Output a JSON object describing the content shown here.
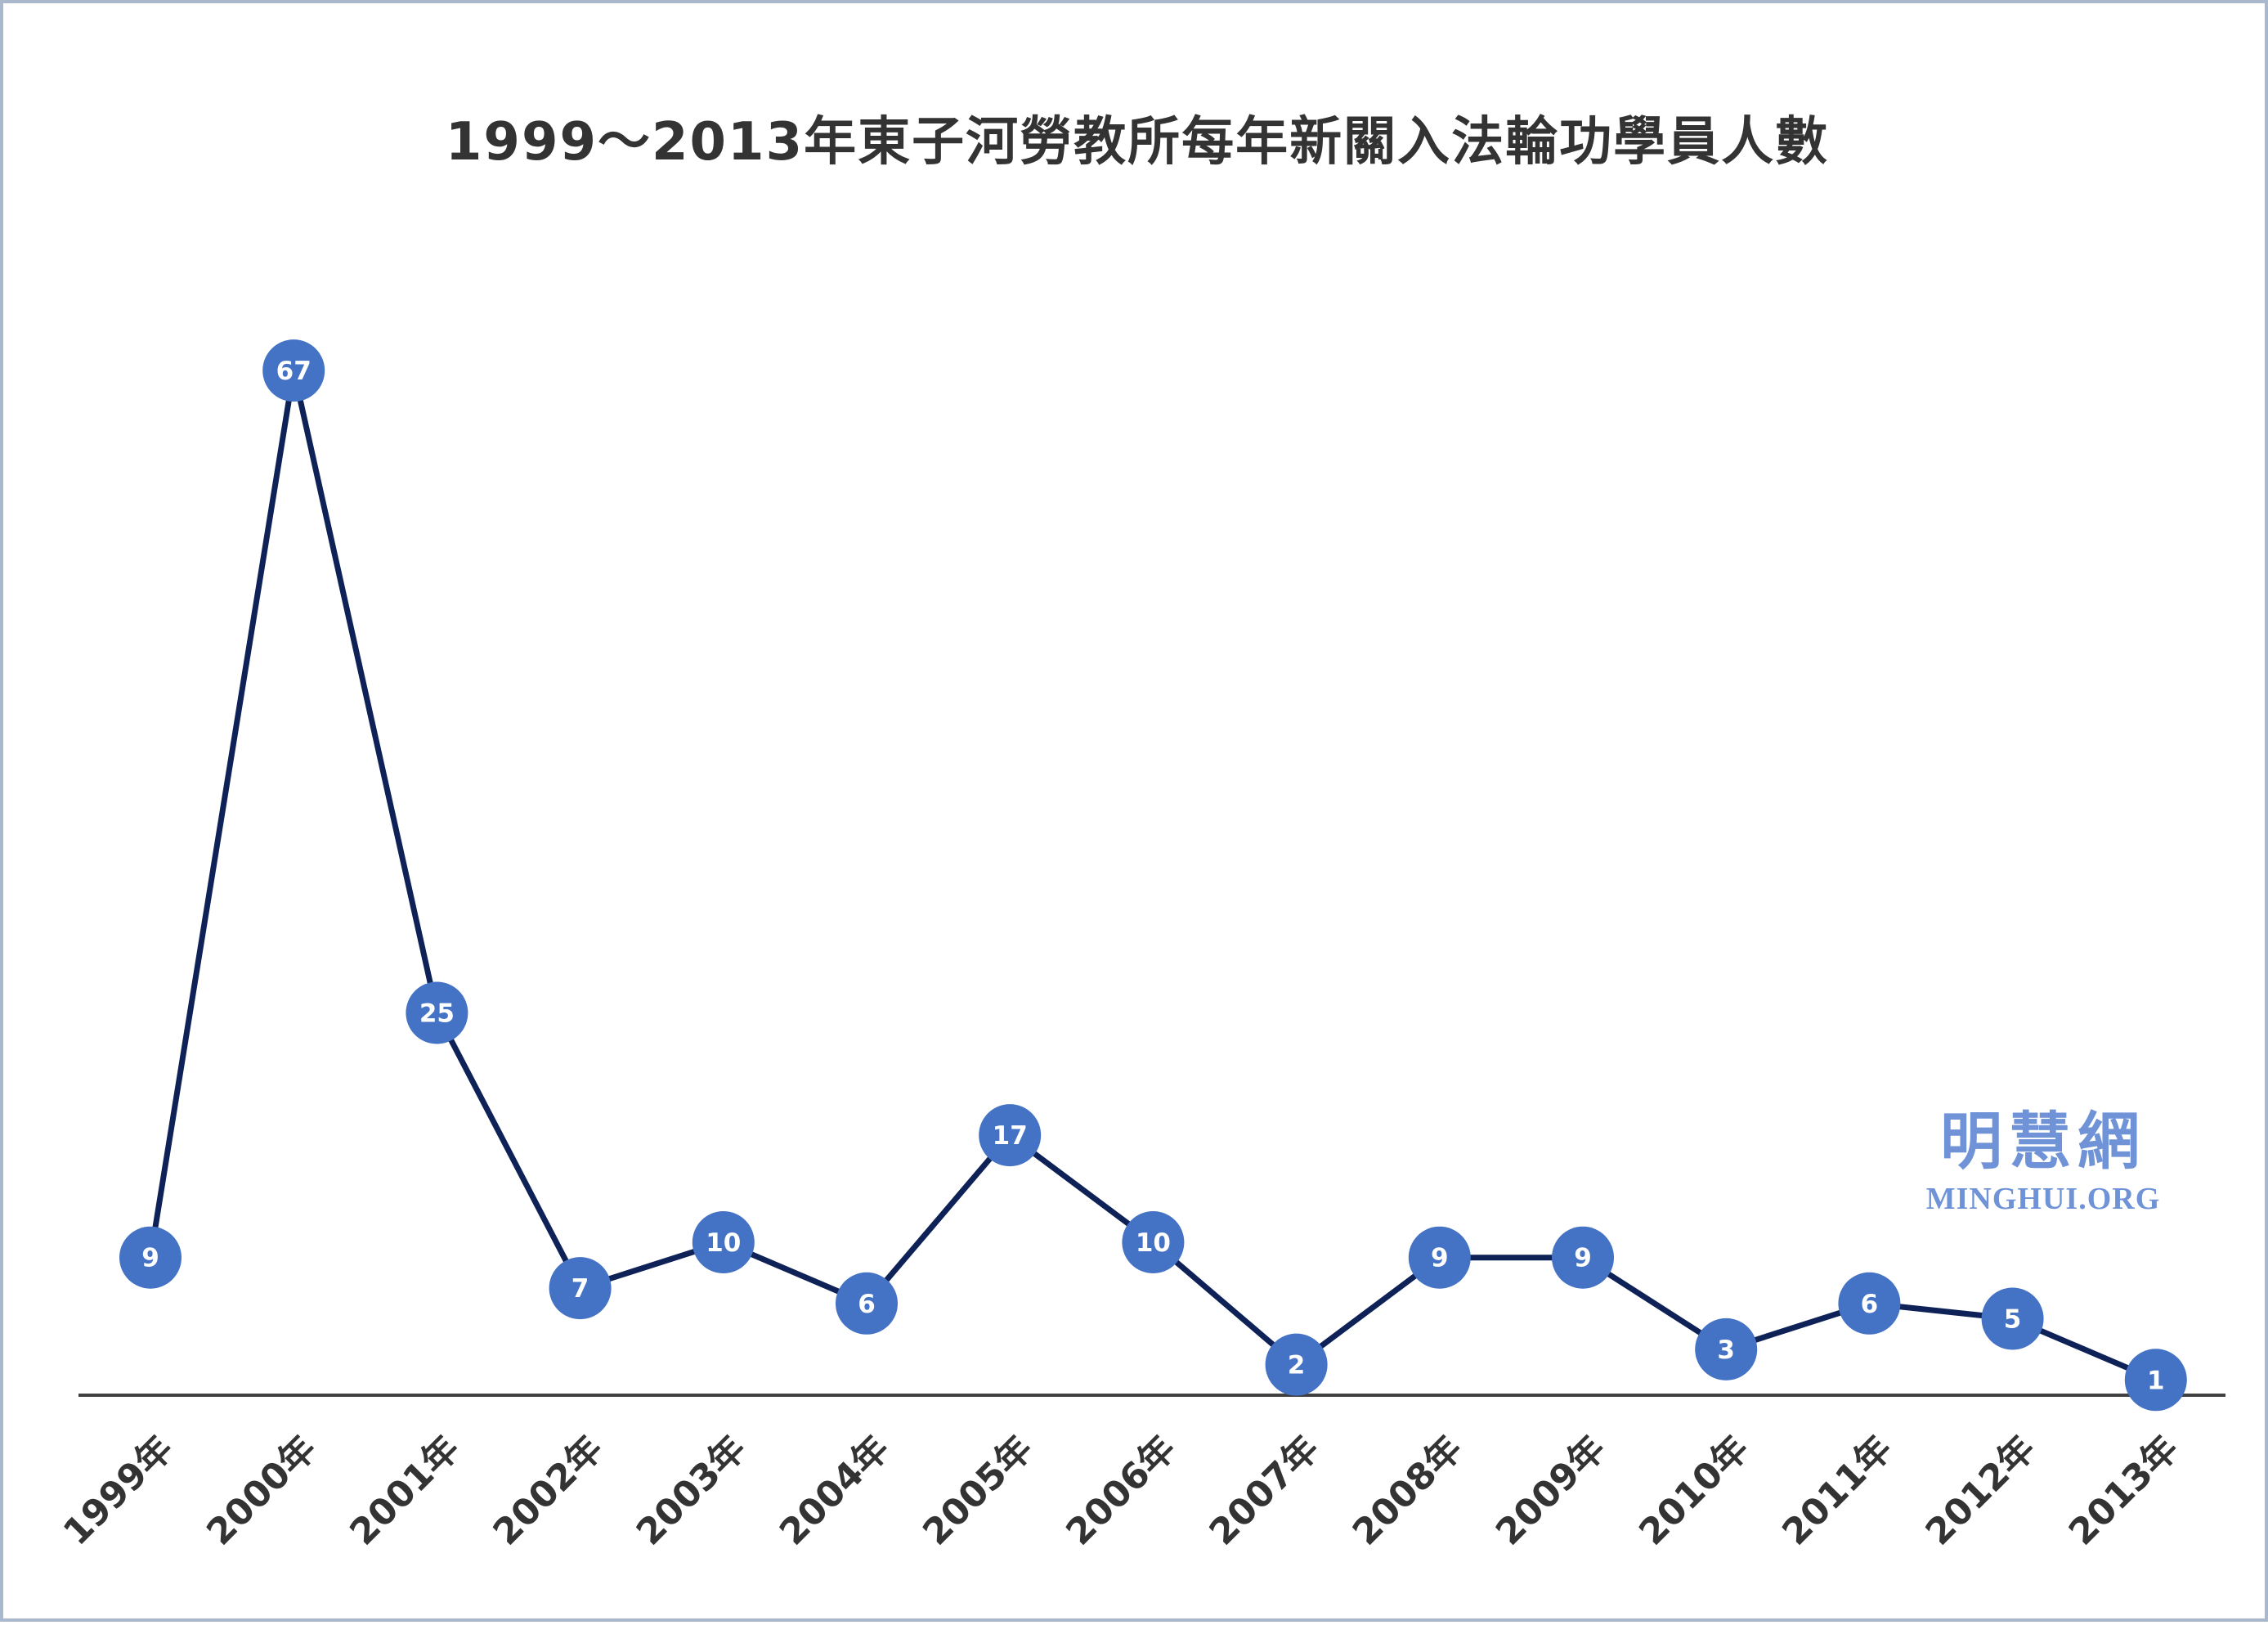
{
  "chart_data": {
    "type": "line",
    "title": "1999～2013年東子河勞教所每年新關入法輪功學員人數",
    "categories": [
      "1999年",
      "2000年",
      "2001年",
      "2002年",
      "2003年",
      "2004年",
      "2005年",
      "2006年",
      "2007年",
      "2008年",
      "2009年",
      "2010年",
      "2011年",
      "2012年",
      "2013年"
    ],
    "values": [
      9,
      67,
      25,
      7,
      10,
      6,
      17,
      10,
      2,
      9,
      9,
      3,
      6,
      5,
      1
    ],
    "ylim": [
      0,
      67
    ],
    "grid": false,
    "legend": "none",
    "colors": {
      "line": "#0f2257",
      "marker": "#4472c4",
      "marker_text": "#ffffff",
      "axis": "#404040",
      "tick_text": "#333333"
    }
  },
  "watermark": {
    "cn": "明慧網",
    "en": "MINGHUI.ORG"
  }
}
